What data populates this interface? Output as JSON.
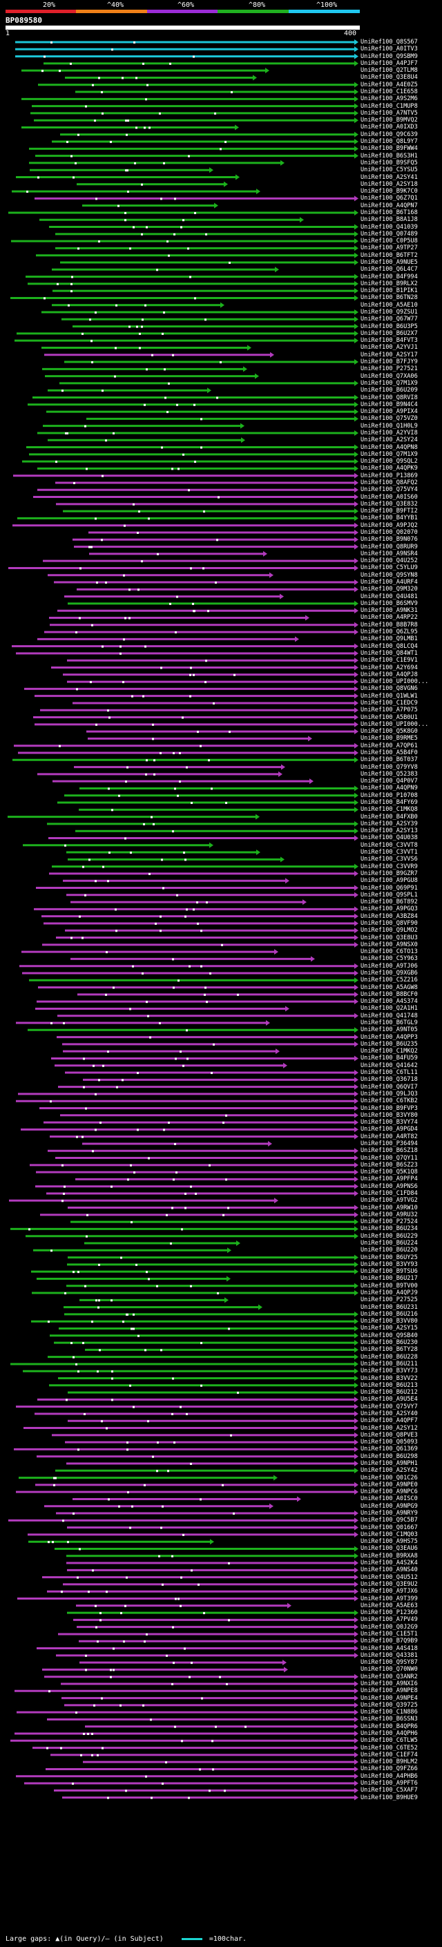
{
  "scale": {
    "ticks": [
      "20%",
      "^40%",
      "^60%",
      "^80%",
      "^100%"
    ],
    "colors": [
      "#e0202a",
      "#f08018",
      "#9b2cd6",
      "#20b020",
      "#20c8f0"
    ]
  },
  "title": "BP089580",
  "query": {
    "start": "1",
    "end": "400"
  },
  "hit_colors": {
    "cyan": "#1cc6d8",
    "green": "#1cb11c",
    "magenta": "#b23bbd",
    "dot": "#ffffff"
  },
  "hits": [
    {
      "label": "UniRef100_Q8S567",
      "color": "cyan"
    },
    {
      "label": "UniRef100_A0ITV3",
      "color": "cyan"
    },
    {
      "label": "UniRef100_Q9SBM9",
      "color": "cyan"
    },
    {
      "label": "UniRef100_A4PJF7",
      "color": "green"
    },
    {
      "label": "UniRef100_Q2TLM8",
      "color": "green"
    },
    {
      "label": "UniRef100_Q3E8U4",
      "color": "green"
    },
    {
      "label": "UniRef100_A4E0Z5",
      "color": "green"
    },
    {
      "label": "UniRef100_C1E658",
      "color": "green"
    },
    {
      "label": "UniRef100_A9S2M6",
      "color": "green"
    },
    {
      "label": "UniRef100_C1MUP8",
      "color": "green"
    },
    {
      "label": "UniRef100_A7NTV5",
      "color": "green"
    },
    {
      "label": "UniRef100_B9MVQ2",
      "color": "green"
    },
    {
      "label": "UniRef100_A0IXD3",
      "color": "green"
    },
    {
      "label": "UniRef100_Q9C639",
      "color": "green"
    },
    {
      "label": "UniRef100_Q8L9Y7",
      "color": "green"
    },
    {
      "label": "UniRef100_B9FWW4",
      "color": "green"
    },
    {
      "label": "UniRef100_B6S3H1",
      "color": "green"
    },
    {
      "label": "UniRef100_B9SFQ5",
      "color": "green"
    },
    {
      "label": "UniRef100_C5YSU5",
      "color": "green"
    },
    {
      "label": "UniRef100_A2SY41",
      "color": "green"
    },
    {
      "label": "UniRef100_A2SY18",
      "color": "green"
    },
    {
      "label": "UniRef100_B9K7C0",
      "color": "green"
    },
    {
      "label": "UniRef100_Q6Z7Q1",
      "color": "magenta"
    },
    {
      "label": "UniRef100_A4QPN7",
      "color": "green"
    },
    {
      "label": "UniRef100_B6T168",
      "color": "green"
    },
    {
      "label": "UniRef100_B8A1J8",
      "color": "green"
    },
    {
      "label": "UniRef100_Q41039",
      "color": "green"
    },
    {
      "label": "UniRef100_Q07489",
      "color": "green"
    },
    {
      "label": "UniRef100_C0P5U8",
      "color": "green"
    },
    {
      "label": "UniRef100_A9TP27",
      "color": "green"
    },
    {
      "label": "UniRef100_B6TFT2",
      "color": "green"
    },
    {
      "label": "UniRef100_A9NUE5",
      "color": "green"
    },
    {
      "label": "UniRef100_Q6L4C7",
      "color": "green"
    },
    {
      "label": "UniRef100_B4F994",
      "color": "green"
    },
    {
      "label": "UniRef100_B9RLX2",
      "color": "green"
    },
    {
      "label": "UniRef100_B1PIK1",
      "color": "green"
    },
    {
      "label": "UniRef100_B6TN28",
      "color": "green"
    },
    {
      "label": "UniRef100_A5AE10",
      "color": "green"
    },
    {
      "label": "UniRef100_Q9ZSU1",
      "color": "green"
    },
    {
      "label": "UniRef100_Q67W77",
      "color": "green"
    },
    {
      "label": "UniRef100_B6U3P5",
      "color": "green"
    },
    {
      "label": "UniRef100_B6U2X7",
      "color": "green"
    },
    {
      "label": "UniRef100_B4FVT3",
      "color": "green"
    },
    {
      "label": "UniRef100_A2YVJ1",
      "color": "green"
    },
    {
      "label": "UniRef100_A2SY17",
      "color": "magenta"
    },
    {
      "label": "UniRef100_B7FJY9",
      "color": "green"
    },
    {
      "label": "UniRef100_P27521",
      "color": "green"
    },
    {
      "label": "UniRef100_Q7XA06",
      "color": "green"
    },
    {
      "label": "UniRef100_Q7M1X9",
      "color": "green"
    },
    {
      "label": "UniRef100_B6U209",
      "color": "green"
    },
    {
      "label": "UniRef100_Q8RVI8",
      "color": "green"
    },
    {
      "label": "UniRef100_B9N4C4",
      "color": "green"
    },
    {
      "label": "UniRef100_A9PIX4",
      "color": "green"
    },
    {
      "label": "UniRef100_Q75VZ0",
      "color": "green"
    },
    {
      "label": "UniRef100_Q1H0L9",
      "color": "green"
    },
    {
      "label": "UniRef100_A2YVI8",
      "color": "green"
    },
    {
      "label": "UniRef100_A2SY24",
      "color": "green"
    },
    {
      "label": "UniRef100_A4QPN8",
      "color": "green"
    },
    {
      "label": "UniRef100_Q7M1X9",
      "color": "green"
    },
    {
      "label": "UniRef100_Q9SQL2",
      "color": "green"
    },
    {
      "label": "UniRef100_A4QPK9",
      "color": "green"
    },
    {
      "label": "UniRef100_P13869",
      "color": "magenta"
    },
    {
      "label": "UniRef100_Q8AFQ2",
      "color": "magenta"
    },
    {
      "label": "UniRef100_Q75VY4",
      "color": "magenta"
    },
    {
      "label": "UniRef100_A0IS60",
      "color": "magenta"
    },
    {
      "label": "UniRef100_Q3E832",
      "color": "magenta"
    },
    {
      "label": "UniRef100_B9FTI2",
      "color": "green"
    },
    {
      "label": "UniRef100_B4YYB1",
      "color": "green"
    },
    {
      "label": "UniRef100_A9PJQ2",
      "color": "magenta"
    },
    {
      "label": "UniRef100_Q02070",
      "color": "magenta"
    },
    {
      "label": "UniRef100_B9N076",
      "color": "magenta"
    },
    {
      "label": "UniRef100_Q8RUR9",
      "color": "magenta"
    },
    {
      "label": "UniRef100_A9NSR4",
      "color": "magenta"
    },
    {
      "label": "UniRef100_Q4U252",
      "color": "magenta"
    },
    {
      "label": "UniRef100_C5YLU9",
      "color": "magenta"
    },
    {
      "label": "UniRef100_Q9SYN8",
      "color": "magenta"
    },
    {
      "label": "UniRef100_A4URF4",
      "color": "magenta"
    },
    {
      "label": "UniRef100_Q9M320",
      "color": "magenta"
    },
    {
      "label": "UniRef100_Q4U481",
      "color": "magenta"
    },
    {
      "label": "UniRef100_B6SMV9",
      "color": "green"
    },
    {
      "label": "UniRef100_A9NK31",
      "color": "magenta"
    },
    {
      "label": "UniRef100_A4RP22",
      "color": "magenta"
    },
    {
      "label": "UniRef100_B8B7R8",
      "color": "magenta"
    },
    {
      "label": "UniRef100_Q6ZL95",
      "color": "magenta"
    },
    {
      "label": "UniRef100_Q9LMB1",
      "color": "magenta"
    },
    {
      "label": "UniRef100_Q8LCQ4",
      "color": "magenta"
    },
    {
      "label": "UniRef100_Q84WT1",
      "color": "magenta"
    },
    {
      "label": "UniRef100_C1E9V1",
      "color": "magenta"
    },
    {
      "label": "UniRef100_A2Y694",
      "color": "magenta"
    },
    {
      "label": "UniRef100_A4QPJ8",
      "color": "magenta"
    },
    {
      "label": "UniRef100_UPI000...",
      "color": "magenta"
    },
    {
      "label": "UniRef100_Q8VGN6",
      "color": "magenta"
    },
    {
      "label": "UniRef100_Q1WLW1",
      "color": "magenta"
    },
    {
      "label": "UniRef100_C1EDC9",
      "color": "magenta"
    },
    {
      "label": "UniRef100_A7P075",
      "color": "magenta"
    },
    {
      "label": "UniRef100_A5B0U1",
      "color": "magenta"
    },
    {
      "label": "UniRef100_UPI000...",
      "color": "magenta"
    },
    {
      "label": "UniRef100_Q5K8G0",
      "color": "magenta"
    },
    {
      "label": "UniRef100_B9RME5",
      "color": "magenta"
    },
    {
      "label": "UniRef100_A7QP61",
      "color": "magenta"
    },
    {
      "label": "UniRef100_A5B4F0",
      "color": "magenta"
    },
    {
      "label": "UniRef100_B6T037",
      "color": "green"
    },
    {
      "label": "UniRef100_Q79YV8",
      "color": "magenta"
    },
    {
      "label": "UniRef100_Q52383",
      "color": "magenta"
    },
    {
      "label": "UniRef100_Q4P0V7",
      "color": "magenta"
    },
    {
      "label": "UniRef100_A4QPN9",
      "color": "green"
    },
    {
      "label": "UniRef100_P10708",
      "color": "green"
    },
    {
      "label": "UniRef100_B4FY69",
      "color": "green"
    },
    {
      "label": "UniRef100_C1MKQ8",
      "color": "green"
    },
    {
      "label": "UniRef100_B4FXB0",
      "color": "green"
    },
    {
      "label": "UniRef100_A2SY39",
      "color": "green"
    },
    {
      "label": "UniRef100_A2SY13",
      "color": "green"
    },
    {
      "label": "UniRef100_Q4U038",
      "color": "magenta"
    },
    {
      "label": "UniRef100_C3VVT8",
      "color": "green"
    },
    {
      "label": "UniRef100_C3VVT1",
      "color": "green"
    },
    {
      "label": "UniRef100_C3VVS6",
      "color": "green"
    },
    {
      "label": "UniRef100_C3VVR9",
      "color": "green"
    },
    {
      "label": "UniRef100_B9GZR7",
      "color": "magenta"
    },
    {
      "label": "UniRef100_A9PGU8",
      "color": "magenta"
    },
    {
      "label": "UniRef100_Q69P91",
      "color": "magenta"
    },
    {
      "label": "UniRef100_Q9SPL1",
      "color": "magenta"
    },
    {
      "label": "UniRef100_B6T892",
      "color": "magenta"
    },
    {
      "label": "UniRef100_A9PGQ3",
      "color": "magenta"
    },
    {
      "label": "UniRef100_A3BZ84",
      "color": "magenta"
    },
    {
      "label": "UniRef100_Q8VF90",
      "color": "magenta"
    },
    {
      "label": "UniRef100_Q9LMO2",
      "color": "magenta"
    },
    {
      "label": "UniRef100_Q3E8U3",
      "color": "magenta"
    },
    {
      "label": "UniRef100_A9NSX0",
      "color": "magenta"
    },
    {
      "label": "UniRef100_C6TO13",
      "color": "magenta"
    },
    {
      "label": "UniRef100_C5Y963",
      "color": "magenta"
    },
    {
      "label": "UniRef100_A9TJ06",
      "color": "magenta"
    },
    {
      "label": "UniRef100_Q9XGB6",
      "color": "magenta"
    },
    {
      "label": "UniRef100_C5Z216",
      "color": "green"
    },
    {
      "label": "UniRef100_A5AGW8",
      "color": "magenta"
    },
    {
      "label": "UniRef100_B8BCF0",
      "color": "magenta"
    },
    {
      "label": "UniRef100_A4S374",
      "color": "magenta"
    },
    {
      "label": "UniRef100_Q2A1H1",
      "color": "magenta"
    },
    {
      "label": "UniRef100_Q41748",
      "color": "magenta"
    },
    {
      "label": "UniRef100_B6TGL9",
      "color": "magenta"
    },
    {
      "label": "UniRef100_A9NT05",
      "color": "green"
    },
    {
      "label": "UniRef100_A4QPP3",
      "color": "magenta"
    },
    {
      "label": "UniRef100_B6U235",
      "color": "magenta"
    },
    {
      "label": "UniRef100_C1MKQ2",
      "color": "magenta"
    },
    {
      "label": "UniRef100_B4FU59",
      "color": "magenta"
    },
    {
      "label": "UniRef100_Q41642",
      "color": "magenta"
    },
    {
      "label": "UniRef100_C6TL11",
      "color": "magenta"
    },
    {
      "label": "UniRef100_Q36718",
      "color": "magenta"
    },
    {
      "label": "UniRef100_Q6QVI7",
      "color": "magenta"
    },
    {
      "label": "UniRef100_Q9LJQ3",
      "color": "magenta"
    },
    {
      "label": "UniRef100_C6TKB2",
      "color": "magenta"
    },
    {
      "label": "UniRef100_B9FVP3",
      "color": "magenta"
    },
    {
      "label": "UniRef100_B3VY80",
      "color": "magenta"
    },
    {
      "label": "UniRef100_B3VY74",
      "color": "magenta"
    },
    {
      "label": "UniRef100_A9PGD4",
      "color": "magenta"
    },
    {
      "label": "UniRef100_A4RT82",
      "color": "magenta"
    },
    {
      "label": "UniRef100_P36494",
      "color": "magenta"
    },
    {
      "label": "UniRef100_B6SZ18",
      "color": "magenta"
    },
    {
      "label": "UniRef100_Q7QY11",
      "color": "magenta"
    },
    {
      "label": "UniRef100_B6SZ23",
      "color": "magenta"
    },
    {
      "label": "UniRef100_Q5K1Q8",
      "color": "magenta"
    },
    {
      "label": "UniRef100_A9PFP4",
      "color": "magenta"
    },
    {
      "label": "UniRef100_A9PNS6",
      "color": "magenta"
    },
    {
      "label": "UniRef100_C1FD84",
      "color": "magenta"
    },
    {
      "label": "UniRef100_A9TVG2",
      "color": "magenta"
    },
    {
      "label": "UniRef100_A9RW10",
      "color": "magenta"
    },
    {
      "label": "UniRef100_A9RU32",
      "color": "magenta"
    },
    {
      "label": "UniRef100_P27524",
      "color": "green"
    },
    {
      "label": "UniRef100_B6U234",
      "color": "green"
    },
    {
      "label": "UniRef100_B6U229",
      "color": "green"
    },
    {
      "label": "UniRef100_B6U224",
      "color": "green"
    },
    {
      "label": "UniRef100_B6U220",
      "color": "green"
    },
    {
      "label": "UniRef100_B6UY25",
      "color": "green"
    },
    {
      "label": "UniRef100_B3VY93",
      "color": "green"
    },
    {
      "label": "UniRef100_B9TSU6",
      "color": "green"
    },
    {
      "label": "UniRef100_B6U217",
      "color": "green"
    },
    {
      "label": "UniRef100_B9TV00",
      "color": "green"
    },
    {
      "label": "UniRef100_A4QPJ9",
      "color": "green"
    },
    {
      "label": "UniRef100_P27525",
      "color": "green"
    },
    {
      "label": "UniRef100_B6U231",
      "color": "green"
    },
    {
      "label": "UniRef100_B6U216",
      "color": "green"
    },
    {
      "label": "UniRef100_B3VV80",
      "color": "green"
    },
    {
      "label": "UniRef100_A2SY15",
      "color": "green"
    },
    {
      "label": "UniRef100_Q9SB40",
      "color": "green"
    },
    {
      "label": "UniRef100_B6U230",
      "color": "green"
    },
    {
      "label": "UniRef100_B6TY28",
      "color": "green"
    },
    {
      "label": "UniRef100_B6U228",
      "color": "green"
    },
    {
      "label": "UniRef100_B6U211",
      "color": "green"
    },
    {
      "label": "UniRef100_B3VY73",
      "color": "green"
    },
    {
      "label": "UniRef100_B3VV22",
      "color": "green"
    },
    {
      "label": "UniRef100_B6U213",
      "color": "green"
    },
    {
      "label": "UniRef100_B6U212",
      "color": "green"
    },
    {
      "label": "UniRef100_A9U5E4",
      "color": "magenta"
    },
    {
      "label": "UniRef100_Q75VY7",
      "color": "magenta"
    },
    {
      "label": "UniRef100_A2SY40",
      "color": "magenta"
    },
    {
      "label": "UniRef100_A4QPF7",
      "color": "magenta"
    },
    {
      "label": "UniRef100_A2SY12",
      "color": "magenta"
    },
    {
      "label": "UniRef100_Q8PVE3",
      "color": "magenta"
    },
    {
      "label": "UniRef100_Q05093",
      "color": "magenta"
    },
    {
      "label": "UniRef100_Q61369",
      "color": "magenta"
    },
    {
      "label": "UniRef100_B6U298",
      "color": "magenta"
    },
    {
      "label": "UniRef100_A9NPH1",
      "color": "magenta"
    },
    {
      "label": "UniRef100_A2SY42",
      "color": "green"
    },
    {
      "label": "UniRef100_Q01C26",
      "color": "green"
    },
    {
      "label": "UniRef100_A9NPE0",
      "color": "magenta"
    },
    {
      "label": "UniRef100_A9NPC6",
      "color": "magenta"
    },
    {
      "label": "UniRef100_A0ISC0",
      "color": "magenta"
    },
    {
      "label": "UniRef100_A9NPG9",
      "color": "magenta"
    },
    {
      "label": "UniRef100_A9NRY9",
      "color": "magenta"
    },
    {
      "label": "UniRef100_Q9C5B7",
      "color": "magenta"
    },
    {
      "label": "UniRef100_Q01667",
      "color": "magenta"
    },
    {
      "label": "UniRef100_C1MQ03",
      "color": "magenta"
    },
    {
      "label": "UniRef100_A9HS75",
      "color": "green"
    },
    {
      "label": "UniRef100_Q3EAU6",
      "color": "green"
    },
    {
      "label": "UniRef100_B9RXA8",
      "color": "green"
    },
    {
      "label": "UniRef100_A4S2K4",
      "color": "magenta"
    },
    {
      "label": "UniRef100_A9NS40",
      "color": "magenta"
    },
    {
      "label": "UniRef100_Q4U512",
      "color": "magenta"
    },
    {
      "label": "UniRef100_Q3E9U2",
      "color": "magenta"
    },
    {
      "label": "UniRef100_A9TJX6",
      "color": "magenta"
    },
    {
      "label": "UniRef100_A9T399",
      "color": "magenta"
    },
    {
      "label": "UniRef100_A5AE63",
      "color": "magenta"
    },
    {
      "label": "UniRef100_P12360",
      "color": "green"
    },
    {
      "label": "UniRef100_A7PV49",
      "color": "magenta"
    },
    {
      "label": "UniRef100_Q0J2G9",
      "color": "magenta"
    },
    {
      "label": "UniRef100_C1E5T1",
      "color": "magenta"
    },
    {
      "label": "UniRef100_B7Q9B9",
      "color": "magenta"
    },
    {
      "label": "UniRef100_A4S418",
      "color": "magenta"
    },
    {
      "label": "UniRef100_Q43381",
      "color": "magenta"
    },
    {
      "label": "UniRef100_Q9SY87",
      "color": "magenta"
    },
    {
      "label": "UniRef100_Q70NW0",
      "color": "magenta"
    },
    {
      "label": "UniRef100_Q3ANR2",
      "color": "magenta"
    },
    {
      "label": "UniRef100_A9NXI6",
      "color": "magenta"
    },
    {
      "label": "UniRef100_A9NPE8",
      "color": "magenta"
    },
    {
      "label": "UniRef100_A9NPE4",
      "color": "magenta"
    },
    {
      "label": "UniRef100_Q39725",
      "color": "magenta"
    },
    {
      "label": "UniRef100_C1N886",
      "color": "magenta"
    },
    {
      "label": "UniRef100_B6SSN3",
      "color": "magenta"
    },
    {
      "label": "UniRef100_B4QPR6",
      "color": "magenta"
    },
    {
      "label": "UniRef100_A4QPH6",
      "color": "magenta"
    },
    {
      "label": "UniRef100_C6TLW5",
      "color": "magenta"
    },
    {
      "label": "UniRef100_C6TE52",
      "color": "magenta"
    },
    {
      "label": "UniRef100_C1EF74",
      "color": "magenta"
    },
    {
      "label": "UniRef100_B9HLM2",
      "color": "magenta"
    },
    {
      "label": "UniRef100_Q9FZ66",
      "color": "magenta"
    },
    {
      "label": "UniRef100_A4PHB6",
      "color": "magenta"
    },
    {
      "label": "UniRef100_A9PFT6",
      "color": "magenta"
    },
    {
      "label": "UniRef100_C5XAF7",
      "color": "magenta"
    },
    {
      "label": "UniRef100_B9HUE9",
      "color": "magenta"
    }
  ],
  "footer": {
    "gaps_label": "Large gaps: ▲(in Query)/— (in Subject)",
    "legend_label": "=100char."
  }
}
